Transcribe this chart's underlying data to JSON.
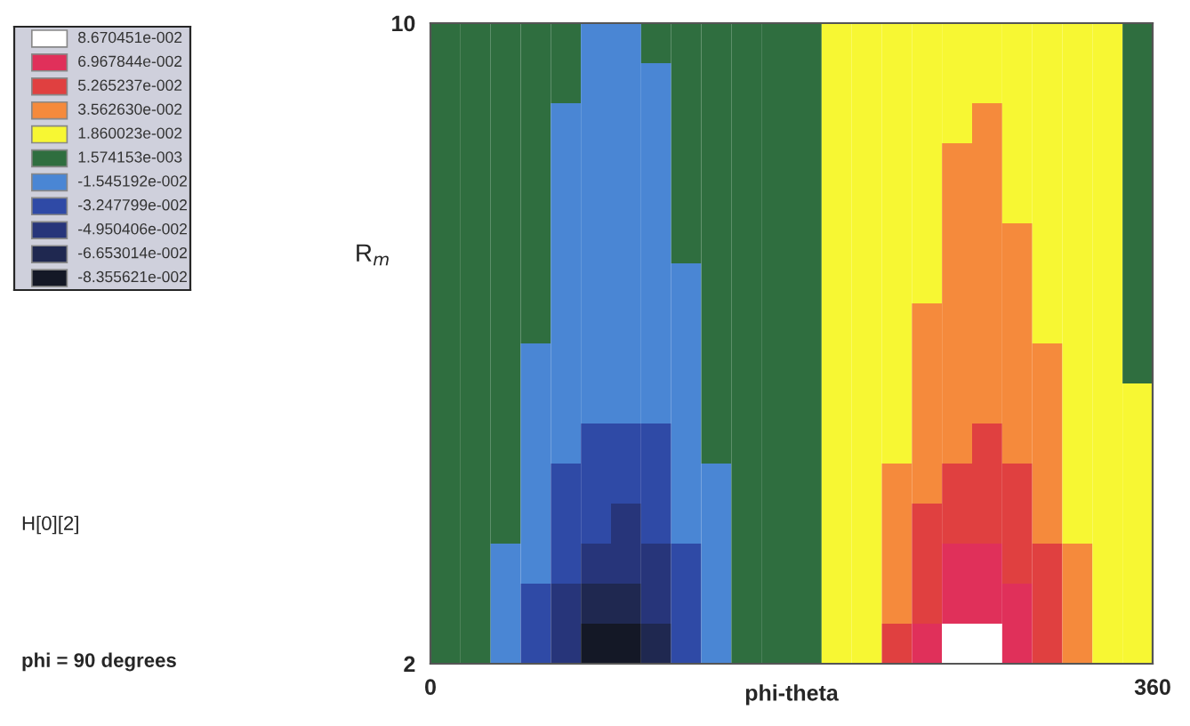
{
  "chart_data": {
    "type": "heatmap",
    "xlabel": "phi-theta",
    "ylabel": "R$_{m}$",
    "annotations": [
      "H[0][2]",
      "phi = 90 degrees"
    ],
    "x": [
      7.5,
      22.5,
      37.5,
      52.5,
      67.5,
      82.5,
      97.5,
      112.5,
      127.5,
      142.5,
      157.5,
      172.5,
      187.5,
      202.5,
      217.5,
      232.5,
      247.5,
      262.5,
      277.5,
      292.5,
      307.5,
      322.5,
      337.5,
      352.5
    ],
    "y": [
      9.75,
      9.25,
      8.75,
      8.25,
      7.75,
      7.25,
      6.75,
      6.25,
      5.75,
      5.25,
      4.75,
      4.25,
      3.75,
      3.25,
      2.75,
      2.25
    ],
    "xlim": [
      0,
      360
    ],
    "xticks": [
      0,
      360
    ],
    "ylim": [
      2,
      10
    ],
    "yticks": [
      2,
      10
    ],
    "cticks": [
      {
        "value": 0.08670451,
        "label": "8.670451e-002"
      },
      {
        "value": 0.06967844,
        "label": "6.967844e-002"
      },
      {
        "value": 0.05265237,
        "label": "5.265237e-002"
      },
      {
        "value": 0.0356263,
        "label": "3.562630e-002"
      },
      {
        "value": 0.01860023,
        "label": "1.860023e-002"
      },
      {
        "value": 0.001574153,
        "label": "1.574153e-003"
      },
      {
        "value": -0.01545192,
        "label": "-1.545192e-002"
      },
      {
        "value": -0.03247799,
        "label": "-3.247799e-002"
      },
      {
        "value": -0.04950406,
        "label": "-4.950406e-002"
      },
      {
        "value": -0.06653014,
        "label": "-6.653014e-002"
      },
      {
        "value": -0.08355621,
        "label": "-8.355621e-002"
      }
    ],
    "colors": [
      "#ffffff",
      "#e0305a",
      "#e04040",
      "#f58a3c",
      "#f7f733",
      "#2f6e3f",
      "#4a86d4",
      "#2f4aa6",
      "#27357a",
      "#1f2850",
      "#141826"
    ],
    "cells": [
      [
        0.001574153,
        0.001574153,
        0.001574153,
        0.001574153,
        0.001574153,
        -0.01545192,
        -0.01545192,
        0.001574153,
        0.001574153,
        0.001574153,
        0.001574153,
        0.001574153,
        0.001574153,
        0.01860023,
        0.01860023,
        0.01860023,
        0.01860023,
        0.01860023,
        0.01860023,
        0.01860023,
        0.01860023,
        0.01860023,
        0.01860023,
        0.001574153
      ],
      [
        0.001574153,
        0.001574153,
        0.001574153,
        0.001574153,
        0.001574153,
        -0.01545192,
        -0.01545192,
        -0.01545192,
        0.001574153,
        0.001574153,
        0.001574153,
        0.001574153,
        0.001574153,
        0.01860023,
        0.01860023,
        0.01860023,
        0.01860023,
        0.01860023,
        0.01860023,
        0.01860023,
        0.01860023,
        0.01860023,
        0.01860023,
        0.001574153
      ],
      [
        0.001574153,
        0.001574153,
        0.001574153,
        0.001574153,
        -0.01545192,
        -0.01545192,
        -0.01545192,
        -0.01545192,
        0.001574153,
        0.001574153,
        0.001574153,
        0.001574153,
        0.001574153,
        0.01860023,
        0.01860023,
        0.01860023,
        0.01860023,
        0.01860023,
        0.0356263,
        0.01860023,
        0.01860023,
        0.01860023,
        0.01860023,
        0.001574153
      ],
      [
        0.001574153,
        0.001574153,
        0.001574153,
        0.001574153,
        -0.01545192,
        -0.01545192,
        -0.01545192,
        -0.01545192,
        0.001574153,
        0.001574153,
        0.001574153,
        0.001574153,
        0.001574153,
        0.01860023,
        0.01860023,
        0.01860023,
        0.01860023,
        0.0356263,
        0.0356263,
        0.01860023,
        0.01860023,
        0.01860023,
        0.01860023,
        0.001574153
      ],
      [
        0.001574153,
        0.001574153,
        0.001574153,
        0.001574153,
        -0.01545192,
        -0.01545192,
        -0.01545192,
        -0.01545192,
        0.001574153,
        0.001574153,
        0.001574153,
        0.001574153,
        0.001574153,
        0.01860023,
        0.01860023,
        0.01860023,
        0.01860023,
        0.0356263,
        0.0356263,
        0.01860023,
        0.01860023,
        0.01860023,
        0.01860023,
        0.001574153
      ],
      [
        0.001574153,
        0.001574153,
        0.001574153,
        0.001574153,
        -0.01545192,
        -0.01545192,
        -0.01545192,
        -0.01545192,
        0.001574153,
        0.001574153,
        0.001574153,
        0.001574153,
        0.001574153,
        0.01860023,
        0.01860023,
        0.01860023,
        0.01860023,
        0.0356263,
        0.0356263,
        0.0356263,
        0.01860023,
        0.01860023,
        0.01860023,
        0.001574153
      ],
      [
        0.001574153,
        0.001574153,
        0.001574153,
        0.001574153,
        -0.01545192,
        -0.01545192,
        -0.01545192,
        -0.01545192,
        -0.01545192,
        0.001574153,
        0.001574153,
        0.001574153,
        0.001574153,
        0.01860023,
        0.01860023,
        0.01860023,
        0.01860023,
        0.0356263,
        0.0356263,
        0.0356263,
        0.01860023,
        0.01860023,
        0.01860023,
        0.001574153
      ],
      [
        0.001574153,
        0.001574153,
        0.001574153,
        0.001574153,
        -0.01545192,
        -0.01545192,
        -0.01545192,
        -0.01545192,
        -0.01545192,
        0.001574153,
        0.001574153,
        0.001574153,
        0.001574153,
        0.01860023,
        0.01860023,
        0.01860023,
        0.0356263,
        0.0356263,
        0.0356263,
        0.0356263,
        0.01860023,
        0.01860023,
        0.01860023,
        0.001574153
      ],
      [
        0.001574153,
        0.001574153,
        0.001574153,
        -0.01545192,
        -0.01545192,
        -0.01545192,
        -0.01545192,
        -0.01545192,
        -0.01545192,
        0.001574153,
        0.001574153,
        0.001574153,
        0.001574153,
        0.01860023,
        0.01860023,
        0.01860023,
        0.0356263,
        0.0356263,
        0.0356263,
        0.0356263,
        0.0356263,
        0.01860023,
        0.01860023,
        0.001574153
      ],
      [
        0.001574153,
        0.001574153,
        0.001574153,
        -0.01545192,
        -0.01545192,
        -0.01545192,
        -0.01545192,
        -0.01545192,
        -0.01545192,
        0.001574153,
        0.001574153,
        0.001574153,
        0.001574153,
        0.01860023,
        0.01860023,
        0.01860023,
        0.0356263,
        0.0356263,
        0.0356263,
        0.0356263,
        0.0356263,
        0.01860023,
        0.01860023,
        0.01860023
      ],
      [
        0.001574153,
        0.001574153,
        0.001574153,
        -0.01545192,
        -0.01545192,
        -0.03247799,
        -0.03247799,
        -0.03247799,
        -0.01545192,
        0.001574153,
        0.001574153,
        0.001574153,
        0.001574153,
        0.01860023,
        0.01860023,
        0.01860023,
        0.0356263,
        0.0356263,
        0.05265237,
        0.0356263,
        0.0356263,
        0.01860023,
        0.01860023,
        0.01860023
      ],
      [
        0.001574153,
        0.001574153,
        0.001574153,
        -0.01545192,
        -0.03247799,
        -0.03247799,
        -0.03247799,
        -0.03247799,
        -0.01545192,
        -0.01545192,
        0.001574153,
        0.001574153,
        0.001574153,
        0.01860023,
        0.01860023,
        0.0356263,
        0.0356263,
        0.05265237,
        0.05265237,
        0.05265237,
        0.0356263,
        0.01860023,
        0.01860023,
        0.01860023
      ],
      [
        0.001574153,
        0.001574153,
        0.001574153,
        -0.01545192,
        -0.03247799,
        -0.03247799,
        -0.04950406,
        -0.03247799,
        -0.01545192,
        -0.01545192,
        0.001574153,
        0.001574153,
        0.001574153,
        0.01860023,
        0.01860023,
        0.0356263,
        0.05265237,
        0.05265237,
        0.05265237,
        0.05265237,
        0.0356263,
        0.01860023,
        0.01860023,
        0.01860023
      ],
      [
        0.001574153,
        0.001574153,
        -0.01545192,
        -0.01545192,
        -0.03247799,
        -0.04950406,
        -0.04950406,
        -0.04950406,
        -0.03247799,
        -0.01545192,
        0.001574153,
        0.001574153,
        0.001574153,
        0.01860023,
        0.01860023,
        0.0356263,
        0.05265237,
        0.06967844,
        0.06967844,
        0.05265237,
        0.05265237,
        0.0356263,
        0.01860023,
        0.01860023
      ],
      [
        0.001574153,
        0.001574153,
        -0.01545192,
        -0.03247799,
        -0.04950406,
        -0.06653014,
        -0.06653014,
        -0.04950406,
        -0.03247799,
        -0.01545192,
        0.001574153,
        0.001574153,
        0.001574153,
        0.01860023,
        0.01860023,
        0.0356263,
        0.05265237,
        0.06967844,
        0.06967844,
        0.06967844,
        0.05265237,
        0.0356263,
        0.01860023,
        0.01860023
      ],
      [
        0.001574153,
        0.001574153,
        -0.01545192,
        -0.03247799,
        -0.04950406,
        -0.08355621,
        -0.08355621,
        -0.06653014,
        -0.03247799,
        -0.01545192,
        0.001574153,
        0.001574153,
        0.001574153,
        0.01860023,
        0.01860023,
        0.05265237,
        0.06967844,
        0.08670451,
        0.08670451,
        0.06967844,
        0.05265237,
        0.0356263,
        0.01860023,
        0.01860023
      ]
    ]
  }
}
